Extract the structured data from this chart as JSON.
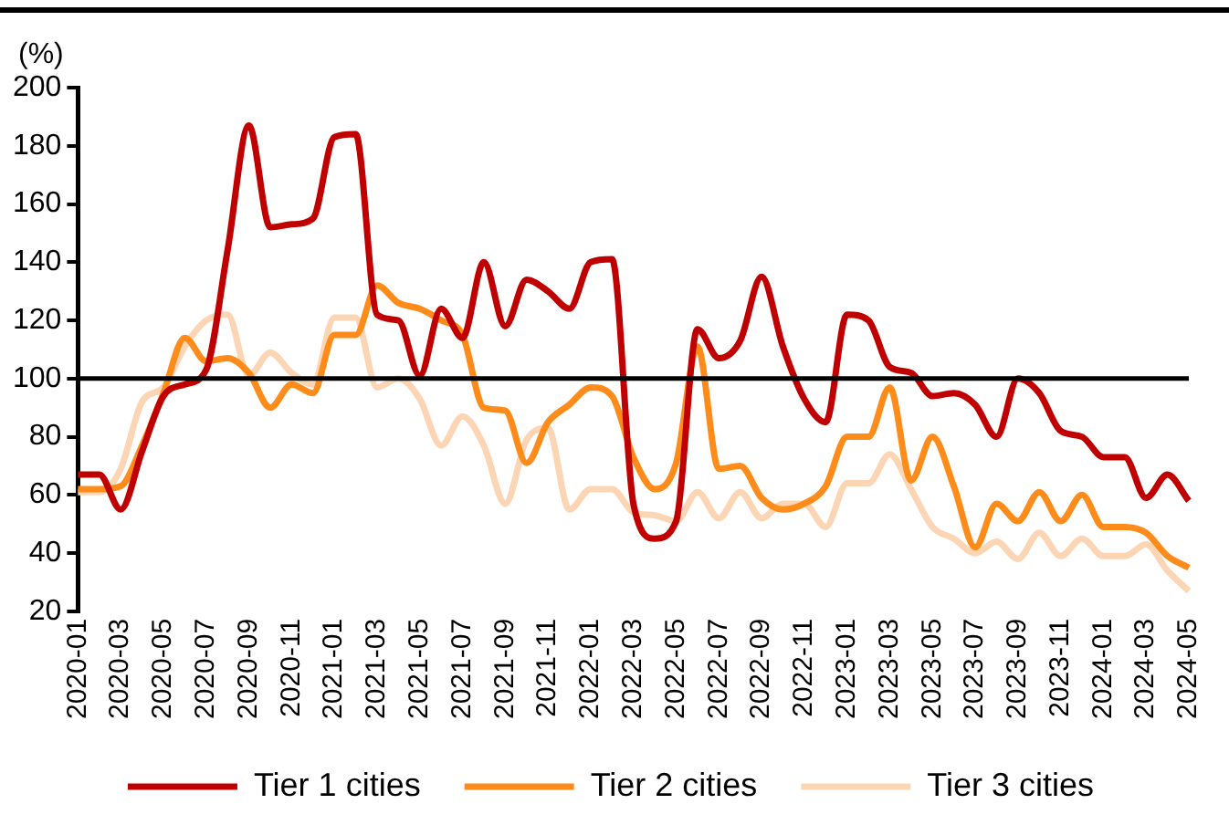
{
  "chart_data": {
    "type": "line",
    "ylabel": "(%)",
    "categories": [
      "2020-01",
      null,
      "2020-03",
      null,
      "2020-05",
      null,
      "2020-07",
      null,
      "2020-09",
      null,
      "2020-11",
      null,
      "2021-01",
      null,
      "2021-03",
      null,
      "2021-05",
      null,
      "2021-07",
      null,
      "2021-09",
      null,
      "2021-11",
      null,
      "2022-01",
      null,
      "2022-03",
      null,
      "2022-05",
      null,
      "2022-07",
      null,
      "2022-09",
      null,
      "2022-11",
      null,
      "2023-01",
      null,
      "2023-03",
      null,
      "2023-05",
      null,
      "2023-07",
      null,
      "2023-09",
      null,
      "2023-11",
      null,
      "2024-01",
      null,
      "2024-03",
      null,
      "2024-05"
    ],
    "series": [
      {
        "name": "Tier 1 cities",
        "color": "#c00000",
        "values": [
          67,
          67,
          55,
          75,
          94,
          98,
          103,
          144,
          187,
          152,
          153,
          155,
          183,
          184,
          122,
          120,
          101,
          124,
          114,
          140,
          118,
          134,
          130,
          124,
          140,
          141,
          57,
          45,
          51,
          117,
          107,
          113,
          135,
          111,
          93,
          85,
          122,
          120,
          104,
          102,
          94,
          95,
          91,
          80,
          100,
          95,
          82,
          80,
          73,
          73,
          59,
          67,
          58
        ]
      },
      {
        "name": "Tier 2 cities",
        "color": "#ff8c1a",
        "values": [
          62,
          62,
          63,
          77,
          95,
          114,
          106,
          107,
          102,
          90,
          98,
          95,
          115,
          115,
          132,
          126,
          124,
          120,
          115,
          90,
          89,
          71,
          85,
          91,
          97,
          94,
          73,
          62,
          71,
          111,
          69,
          70,
          59,
          55,
          57,
          63,
          80,
          80,
          97,
          65,
          80,
          63,
          42,
          57,
          51,
          61,
          51,
          60,
          49,
          49,
          47,
          39,
          35
        ]
      },
      {
        "name": "Tier 3 cities",
        "color": "#fcd5b5",
        "values": [
          61,
          61,
          69,
          92,
          97,
          111,
          120,
          122,
          101,
          109,
          102,
          98,
          121,
          121,
          97,
          100,
          93,
          77,
          87,
          77,
          57,
          79,
          83,
          55,
          62,
          62,
          54,
          53,
          51,
          61,
          52,
          61,
          52,
          57,
          57,
          49,
          64,
          64,
          74,
          62,
          49,
          45,
          40,
          44,
          38,
          47,
          39,
          45,
          39,
          39,
          43,
          34,
          27
        ]
      }
    ],
    "ylim": [
      20,
      200
    ],
    "yticks": [
      20,
      40,
      60,
      80,
      100,
      120,
      140,
      160,
      180,
      200
    ],
    "ref_lines": [
      {
        "axis": "y",
        "value": 100,
        "color": "#000000"
      }
    ],
    "grid": false,
    "legend": "bottom",
    "marker": "none",
    "line_style": "solid"
  }
}
